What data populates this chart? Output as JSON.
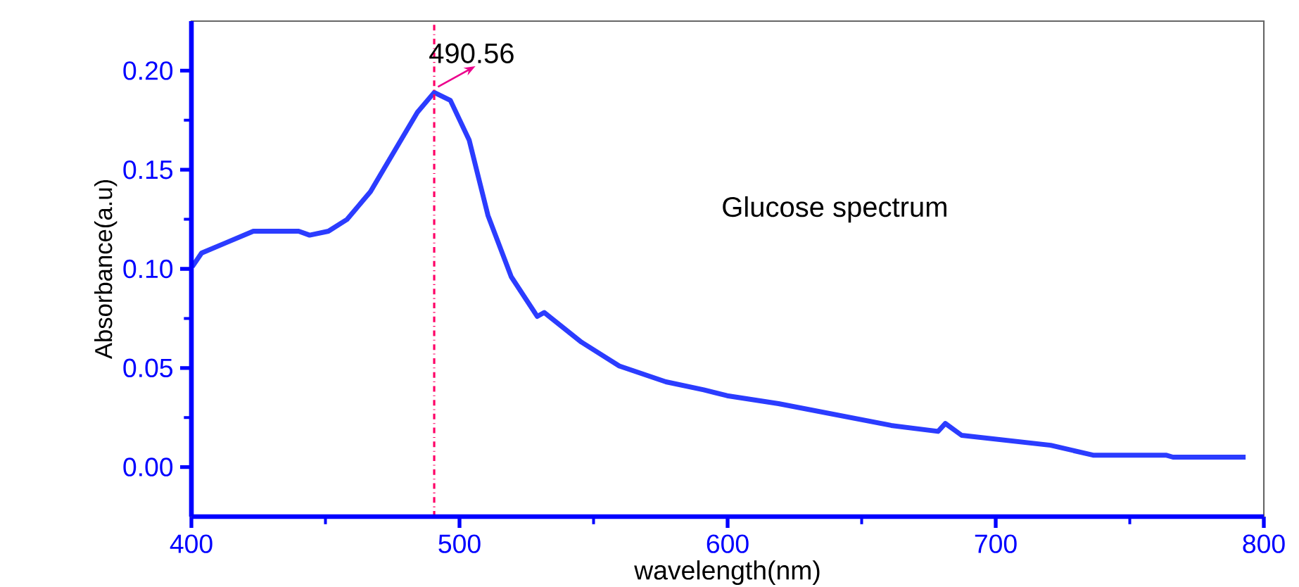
{
  "chart_data": {
    "type": "line",
    "xlabel": "wavelength(nm)",
    "ylabel": "Absorbance(a.u)",
    "xlim": [
      400,
      800
    ],
    "ylim": [
      -0.025,
      0.225
    ],
    "xticks": [
      400,
      500,
      600,
      700,
      800
    ],
    "yticks": [
      {
        "value": 0,
        "label": "0.00"
      },
      {
        "value": 0.05,
        "label": "0.05"
      },
      {
        "value": 0.1,
        "label": "0.10"
      },
      {
        "value": 0.15,
        "label": "0.15"
      },
      {
        "value": 0.2,
        "label": "0.20"
      }
    ],
    "grid": false,
    "marker": "none",
    "line_style": "solid",
    "series": [
      {
        "color": "#2b3cff",
        "x": [
          400.3,
          403.8,
          412.6,
          423.1,
          433.6,
          440,
          444.1,
          451.1,
          458.1,
          466.8,
          477.3,
          484.3,
          490.56,
          496.6,
          503.6,
          510.6,
          519.3,
          529,
          531.6,
          545.5,
          559.6,
          577,
          591.1,
          599.8,
          619,
          661,
          678.5,
          681.2,
          687.3,
          720.5,
          736.3,
          763.5,
          766.1,
          793.2
        ],
        "values": [
          0.101,
          0.108,
          0.113,
          0.119,
          0.119,
          0.119,
          0.117,
          0.119,
          0.125,
          0.139,
          0.163,
          0.179,
          0.189,
          0.185,
          0.165,
          0.127,
          0.096,
          0.076,
          0.078,
          0.063,
          0.051,
          0.043,
          0.039,
          0.036,
          0.032,
          0.021,
          0.018,
          0.022,
          0.016,
          0.011,
          0.006,
          0.006,
          0.005,
          0.005
        ]
      }
    ],
    "ref_lines": [
      {
        "axis": "x",
        "value": 490.56,
        "color": "#ff0066",
        "line_style": "dashdot"
      }
    ],
    "annotations": [
      {
        "text": "490.56",
        "x": 490.56,
        "y": 0.189
      },
      "Glucose spectrum"
    ]
  }
}
